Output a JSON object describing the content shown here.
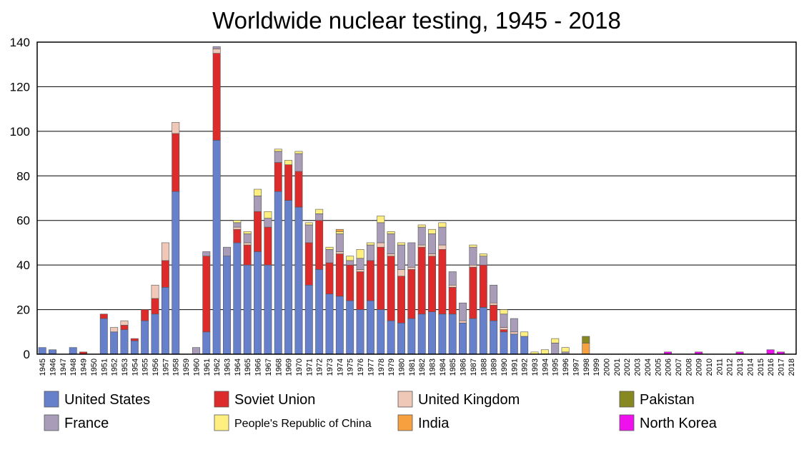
{
  "chart_data": {
    "type": "bar",
    "stacked": true,
    "title": "Worldwide nuclear testing, 1945 - 2018",
    "xlabel": "",
    "ylabel": "",
    "ylim": [
      0,
      140
    ],
    "yticks": [
      0,
      20,
      40,
      60,
      80,
      100,
      120,
      140
    ],
    "grid": "horizontal",
    "legend_position": "bottom",
    "categories": [
      "1945",
      "1946",
      "1947",
      "1948",
      "1949",
      "1950",
      "1951",
      "1952",
      "1953",
      "1954",
      "1955",
      "1956",
      "1957",
      "1958",
      "1959",
      "1960",
      "1961",
      "1962",
      "1963",
      "1964",
      "1965",
      "1966",
      "1967",
      "1968",
      "1969",
      "1970",
      "1971",
      "1972",
      "1973",
      "1974",
      "1975",
      "1976",
      "1977",
      "1978",
      "1979",
      "1980",
      "1981",
      "1982",
      "1983",
      "1984",
      "1985",
      "1986",
      "1987",
      "1988",
      "1989",
      "1990",
      "1991",
      "1992",
      "1993",
      "1994",
      "1995",
      "1996",
      "1997",
      "1998",
      "1999",
      "2000",
      "2001",
      "2002",
      "2003",
      "2004",
      "2005",
      "2006",
      "2007",
      "2008",
      "2009",
      "2010",
      "2011",
      "2012",
      "2013",
      "2014",
      "2015",
      "2016",
      "2017",
      "2018"
    ],
    "series": [
      {
        "name": "United States",
        "color": "#6680cc",
        "values": [
          3,
          2,
          0,
          3,
          0,
          0,
          16,
          10,
          11,
          6,
          15,
          18,
          30,
          73,
          0,
          0,
          10,
          96,
          44,
          50,
          40,
          46,
          40,
          73,
          69,
          66,
          31,
          38,
          27,
          26,
          24,
          20,
          24,
          20,
          15,
          14,
          16,
          18,
          19,
          18,
          18,
          14,
          16,
          21,
          15,
          10,
          9,
          8,
          0,
          0,
          0,
          0,
          0,
          0,
          0,
          0,
          0,
          0,
          0,
          0,
          0,
          0,
          0,
          0,
          0,
          0,
          0,
          0,
          0,
          0,
          0,
          0,
          0,
          0
        ]
      },
      {
        "name": "Soviet Union",
        "color": "#dd2b2b",
        "values": [
          0,
          0,
          0,
          0,
          1,
          0,
          2,
          0,
          2,
          1,
          5,
          7,
          12,
          26,
          0,
          0,
          34,
          39,
          0,
          6,
          9,
          18,
          17,
          13,
          16,
          16,
          19,
          22,
          14,
          19,
          16,
          17,
          18,
          28,
          29,
          21,
          22,
          30,
          25,
          29,
          12,
          0,
          23,
          19,
          7,
          1,
          0,
          0,
          0,
          0,
          0,
          0,
          0,
          0,
          0,
          0,
          0,
          0,
          0,
          0,
          0,
          0,
          0,
          0,
          0,
          0,
          0,
          0,
          0,
          0,
          0,
          0,
          0,
          0
        ]
      },
      {
        "name": "United Kingdom",
        "color": "#f0c8b8",
        "values": [
          0,
          0,
          0,
          0,
          0,
          0,
          0,
          2,
          2,
          0,
          0,
          6,
          8,
          5,
          0,
          0,
          0,
          2,
          0,
          1,
          1,
          0,
          0,
          0,
          0,
          0,
          0,
          0,
          0,
          1,
          0,
          1,
          0,
          2,
          1,
          3,
          1,
          1,
          1,
          2,
          1,
          1,
          1,
          0,
          1,
          1,
          1,
          0,
          0,
          0,
          0,
          0,
          0,
          0,
          0,
          0,
          0,
          0,
          0,
          0,
          0,
          0,
          0,
          0,
          0,
          0,
          0,
          0,
          0,
          0,
          0,
          0,
          0,
          0
        ]
      },
      {
        "name": "France",
        "color": "#a89cb8",
        "values": [
          0,
          0,
          0,
          0,
          0,
          0,
          0,
          0,
          0,
          0,
          0,
          0,
          0,
          0,
          0,
          3,
          2,
          1,
          4,
          2,
          4,
          7,
          4,
          5,
          0,
          8,
          8,
          3,
          6,
          8,
          2,
          5,
          7,
          9,
          9,
          11,
          11,
          8,
          9,
          8,
          6,
          8,
          8,
          4,
          8,
          6,
          6,
          0,
          0,
          0,
          5,
          1,
          0,
          0,
          0,
          0,
          0,
          0,
          0,
          0,
          0,
          0,
          0,
          0,
          0,
          0,
          0,
          0,
          0,
          0,
          0,
          0,
          0,
          0
        ]
      },
      {
        "name": "People's Republic of China",
        "color": "#ffef80",
        "values": [
          0,
          0,
          0,
          0,
          0,
          0,
          0,
          0,
          0,
          0,
          0,
          0,
          0,
          0,
          0,
          0,
          0,
          0,
          0,
          1,
          1,
          3,
          3,
          1,
          2,
          1,
          1,
          2,
          1,
          1,
          2,
          4,
          1,
          3,
          1,
          1,
          0,
          1,
          2,
          2,
          0,
          0,
          1,
          1,
          0,
          2,
          0,
          2,
          1,
          2,
          2,
          2,
          0,
          0,
          0,
          0,
          0,
          0,
          0,
          0,
          0,
          0,
          0,
          0,
          0,
          0,
          0,
          0,
          0,
          0,
          0,
          0,
          0,
          0
        ]
      },
      {
        "name": "India",
        "color": "#f7a040",
        "values": [
          0,
          0,
          0,
          0,
          0,
          0,
          0,
          0,
          0,
          0,
          0,
          0,
          0,
          0,
          0,
          0,
          0,
          0,
          0,
          0,
          0,
          0,
          0,
          0,
          0,
          0,
          0,
          0,
          0,
          1,
          0,
          0,
          0,
          0,
          0,
          0,
          0,
          0,
          0,
          0,
          0,
          0,
          0,
          0,
          0,
          0,
          0,
          0,
          0,
          0,
          0,
          0,
          0,
          5,
          0,
          0,
          0,
          0,
          0,
          0,
          0,
          0,
          0,
          0,
          0,
          0,
          0,
          0,
          0,
          0,
          0,
          0,
          0,
          0
        ]
      },
      {
        "name": "Pakistan",
        "color": "#888822",
        "values": [
          0,
          0,
          0,
          0,
          0,
          0,
          0,
          0,
          0,
          0,
          0,
          0,
          0,
          0,
          0,
          0,
          0,
          0,
          0,
          0,
          0,
          0,
          0,
          0,
          0,
          0,
          0,
          0,
          0,
          0,
          0,
          0,
          0,
          0,
          0,
          0,
          0,
          0,
          0,
          0,
          0,
          0,
          0,
          0,
          0,
          0,
          0,
          0,
          0,
          0,
          0,
          0,
          0,
          3,
          0,
          0,
          0,
          0,
          0,
          0,
          0,
          0,
          0,
          0,
          0,
          0,
          0,
          0,
          0,
          0,
          0,
          0,
          0,
          0
        ]
      },
      {
        "name": "North Korea",
        "color": "#ee11ee",
        "values": [
          0,
          0,
          0,
          0,
          0,
          0,
          0,
          0,
          0,
          0,
          0,
          0,
          0,
          0,
          0,
          0,
          0,
          0,
          0,
          0,
          0,
          0,
          0,
          0,
          0,
          0,
          0,
          0,
          0,
          0,
          0,
          0,
          0,
          0,
          0,
          0,
          0,
          0,
          0,
          0,
          0,
          0,
          0,
          0,
          0,
          0,
          0,
          0,
          0,
          0,
          0,
          0,
          0,
          0,
          0,
          0,
          0,
          0,
          0,
          0,
          0,
          1,
          0,
          0,
          1,
          0,
          0,
          0,
          1,
          0,
          0,
          2,
          1,
          0
        ]
      }
    ],
    "legend": [
      {
        "name": "United States",
        "color": "#6680cc"
      },
      {
        "name": "Soviet Union",
        "color": "#dd2b2b"
      },
      {
        "name": "United Kingdom",
        "color": "#f0c8b8"
      },
      {
        "name": "Pakistan",
        "color": "#888822"
      },
      {
        "name": "France",
        "color": "#a89cb8"
      },
      {
        "name": "People's Republic of China",
        "color": "#ffef80"
      },
      {
        "name": "India",
        "color": "#f7a040"
      },
      {
        "name": "North Korea",
        "color": "#ee11ee"
      }
    ]
  }
}
